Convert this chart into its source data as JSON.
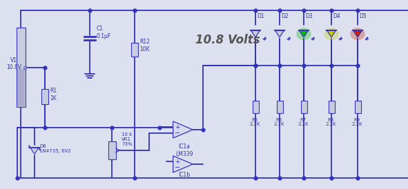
{
  "bg_color": "#dde0ee",
  "line_color": "#3333bb",
  "text_color": "#3333aa",
  "component_fill": "#c8cce0",
  "title": "10.8 Volts",
  "led_colors": [
    "#cccccc",
    "#cccccc",
    "#00bb00",
    "#cccc00",
    "#cc2200"
  ],
  "led_labels": [
    "D1",
    "D2",
    "D3",
    "D4",
    "D5"
  ],
  "res_labels": [
    "R5\n2.2K",
    "R6\n2.2K",
    "R7\n2.2K",
    "R8\n2.2K",
    "R9\n2.2K"
  ],
  "label_v1": "V1\n10.8V",
  "label_c1": "C1\n0.1μF",
  "label_r12": "R12\n10K",
  "label_r1": "R1\n1K",
  "label_d6": "D6\n1N4735, 6V2",
  "label_vr1": "10 k\nVR1\n73%",
  "label_ic1a": "IC1a\nLM339",
  "label_ic1b": "IC1b"
}
